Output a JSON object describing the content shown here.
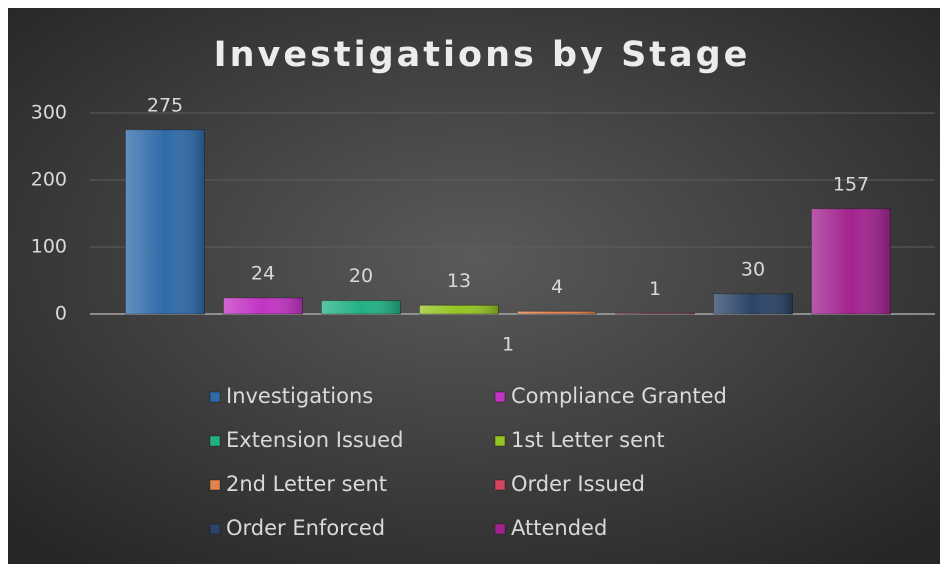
{
  "chart_data": {
    "type": "bar",
    "title": "Investigations by Stage",
    "categories": [
      "1"
    ],
    "series": [
      {
        "name": "Investigations",
        "color": "#2f6ba8",
        "values": [
          275
        ]
      },
      {
        "name": "Compliance Granted",
        "color": "#c233c4",
        "values": [
          24
        ]
      },
      {
        "name": "Extension Issued",
        "color": "#22b184",
        "values": [
          20
        ]
      },
      {
        "name": "1st Letter sent",
        "color": "#94c421",
        "values": [
          13
        ]
      },
      {
        "name": "2nd Letter sent",
        "color": "#e3834f",
        "values": [
          4
        ]
      },
      {
        "name": "Order Issued",
        "color": "#d4445f",
        "values": [
          1
        ]
      },
      {
        "name": "Order Enforced",
        "color": "#2c4467",
        "values": [
          30
        ]
      },
      {
        "name": "Attended",
        "color": "#a2238f",
        "values": [
          157
        ]
      }
    ],
    "ylim": [
      0,
      300
    ],
    "yticks": [
      0,
      100,
      200,
      300
    ],
    "grid": true,
    "legend": "bottom"
  }
}
